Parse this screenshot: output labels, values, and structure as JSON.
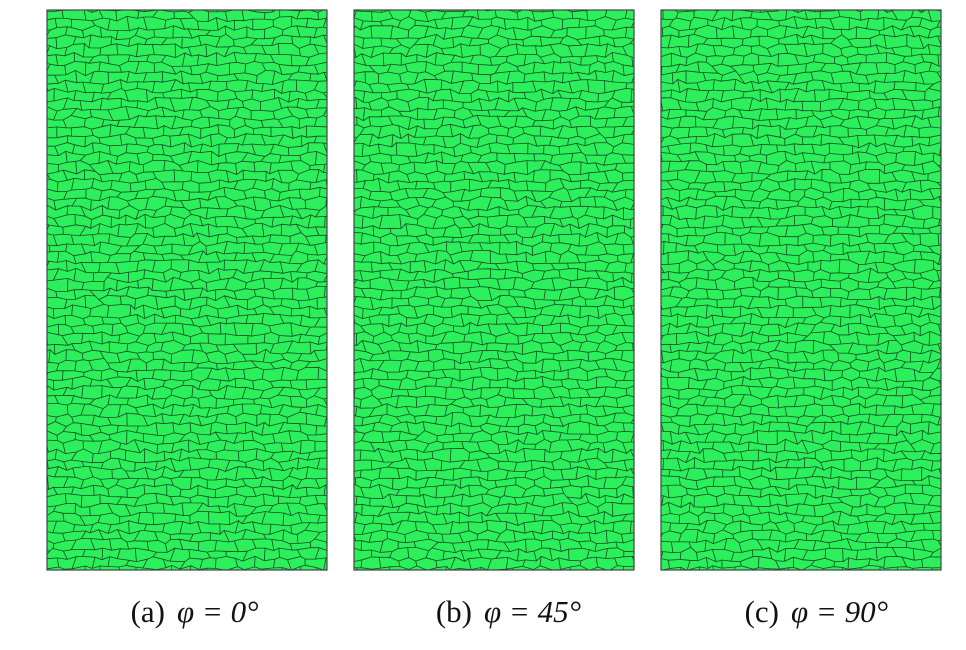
{
  "panels": [
    {
      "label": "(a)",
      "angle": "φ = 0°"
    },
    {
      "label": "(b)",
      "angle": "φ = 45°"
    },
    {
      "label": "(c)",
      "angle": "φ = 90°"
    }
  ]
}
